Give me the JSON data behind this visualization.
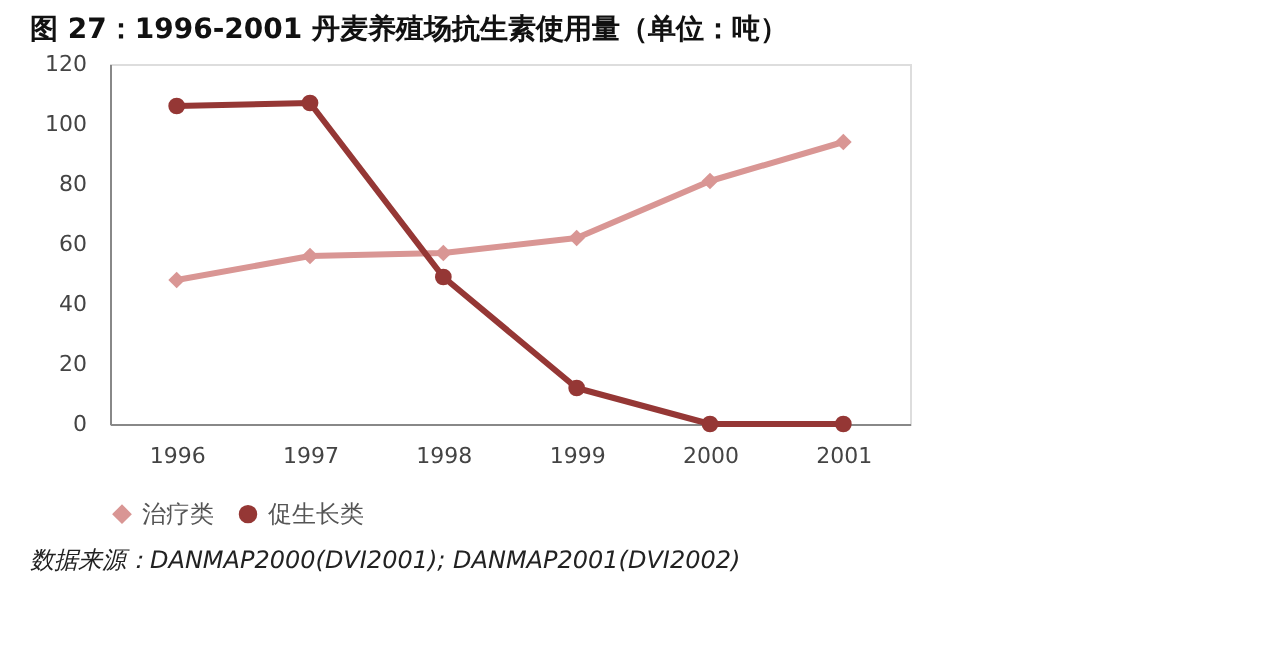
{
  "chart_data": {
    "type": "line",
    "title": "图 27：1996-2001 丹麦养殖场抗生素使用量（单位：吨）",
    "categories": [
      "1996",
      "1997",
      "1998",
      "1999",
      "2000",
      "2001"
    ],
    "series": [
      {
        "name": "治疗类",
        "color": "#d99694",
        "marker": "diamond",
        "values": [
          48,
          56,
          57,
          62,
          81,
          94
        ]
      },
      {
        "name": "促生长类",
        "color": "#953735",
        "marker": "circle",
        "values": [
          106,
          107,
          49,
          12,
          0,
          0
        ]
      }
    ],
    "ylim": [
      0,
      120
    ],
    "yticks": [
      0,
      20,
      40,
      60,
      80,
      100,
      120
    ],
    "grid": false,
    "legend": "bottom",
    "line_style": "solid",
    "annotations": [
      "数据来源：DANMAP2000(DVI2001); DANMAP2001(DVI2002)"
    ]
  }
}
